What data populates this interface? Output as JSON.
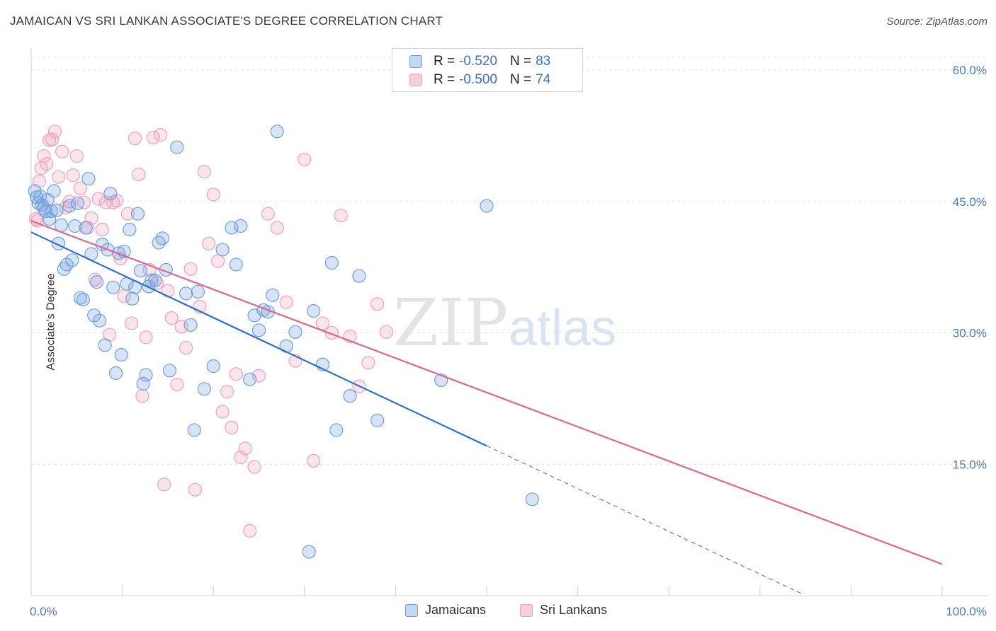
{
  "header": {
    "title": "JAMAICAN VS SRI LANKAN ASSOCIATE'S DEGREE CORRELATION CHART",
    "source": "Source: ZipAtlas.com"
  },
  "legend_top": {
    "rows": [
      {
        "r_label": "R =",
        "r_value": "-0.520",
        "n_label": "N =",
        "n_value": "83"
      },
      {
        "r_label": "R =",
        "r_value": "-0.500",
        "n_label": "N =",
        "n_value": "74"
      }
    ]
  },
  "watermark": {
    "zip": "ZIP",
    "atlas": "atlas"
  },
  "chart_data": {
    "type": "scatter",
    "xlabel": "",
    "ylabel": "Associate's Degree",
    "xlim": [
      0,
      100
    ],
    "ylim": [
      0,
      63
    ],
    "x_ticks": [
      {
        "value": 0,
        "label": "0.0%"
      },
      {
        "value": 100,
        "label": "100.0%"
      }
    ],
    "y_ticks": [
      {
        "value": 15,
        "label": "15.0%"
      },
      {
        "value": 30,
        "label": "30.0%"
      },
      {
        "value": 45,
        "label": "45.0%"
      },
      {
        "value": 60,
        "label": "60.0%"
      }
    ],
    "grid": true,
    "legend_position": "bottom",
    "colors": {
      "jamaicans": "#6f9fe0",
      "sri_lankans": "#f0a0bc",
      "jamaicans_line": "#2f6fcf",
      "sri_lankans_line": "#e06690"
    },
    "series": [
      {
        "name": "Jamaicans",
        "trend": {
          "x0": 0,
          "y0": 41.5,
          "x1": 50,
          "y1": 17.1,
          "dash_to_x": 84.6
        },
        "points": [
          [
            0.4,
            46.2
          ],
          [
            0.6,
            45.5
          ],
          [
            0.8,
            44.8
          ],
          [
            1,
            45.6
          ],
          [
            1.2,
            44.6
          ],
          [
            1.4,
            44.2
          ],
          [
            1.6,
            43.9
          ],
          [
            1.8,
            45.2
          ],
          [
            2,
            43.0
          ],
          [
            2.2,
            43.9
          ],
          [
            2.5,
            46.2
          ],
          [
            2.8,
            44.0
          ],
          [
            3,
            40.2
          ],
          [
            3.3,
            42.3
          ],
          [
            3.6,
            37.3
          ],
          [
            3.9,
            37.8
          ],
          [
            4.2,
            44.5
          ],
          [
            4.5,
            38.3
          ],
          [
            4.8,
            42.2
          ],
          [
            5.1,
            44.8
          ],
          [
            5.4,
            34.0
          ],
          [
            5.7,
            33.8
          ],
          [
            6,
            42.0
          ],
          [
            6.3,
            47.6
          ],
          [
            6.6,
            39.0
          ],
          [
            6.9,
            32.0
          ],
          [
            7.2,
            35.8
          ],
          [
            7.5,
            31.4
          ],
          [
            7.8,
            40.1
          ],
          [
            8.1,
            28.6
          ],
          [
            8.4,
            39.5
          ],
          [
            8.7,
            45.9
          ],
          [
            9,
            35.2
          ],
          [
            9.3,
            25.4
          ],
          [
            9.6,
            39.1
          ],
          [
            9.9,
            27.5
          ],
          [
            10.2,
            39.3
          ],
          [
            10.5,
            35.6
          ],
          [
            10.8,
            41.8
          ],
          [
            11.1,
            33.9
          ],
          [
            11.4,
            35.2
          ],
          [
            11.7,
            43.6
          ],
          [
            12,
            37.1
          ],
          [
            12.3,
            24.2
          ],
          [
            12.6,
            25.2
          ],
          [
            12.9,
            35.3
          ],
          [
            13.2,
            36.0
          ],
          [
            13.6,
            36.0
          ],
          [
            14,
            40.3
          ],
          [
            14.4,
            40.8
          ],
          [
            14.8,
            37.2
          ],
          [
            15.2,
            25.7
          ],
          [
            16,
            51.2
          ],
          [
            17,
            34.5
          ],
          [
            17.5,
            30.9
          ],
          [
            17.9,
            18.9
          ],
          [
            18.3,
            34.7
          ],
          [
            19,
            23.6
          ],
          [
            20,
            26.2
          ],
          [
            21,
            39.5
          ],
          [
            22,
            42.0
          ],
          [
            22.5,
            37.8
          ],
          [
            23,
            42.2
          ],
          [
            24,
            24.7
          ],
          [
            24.5,
            32.0
          ],
          [
            25,
            30.3
          ],
          [
            25.5,
            32.6
          ],
          [
            26,
            32.4
          ],
          [
            26.5,
            34.3
          ],
          [
            27,
            53.0
          ],
          [
            28,
            28.5
          ],
          [
            29,
            30.1
          ],
          [
            30.5,
            5.0
          ],
          [
            31,
            32.5
          ],
          [
            32,
            26.4
          ],
          [
            33,
            38.0
          ],
          [
            33.5,
            18.9
          ],
          [
            35,
            22.8
          ],
          [
            36,
            36.5
          ],
          [
            38,
            20.0
          ],
          [
            45,
            24.6
          ],
          [
            50,
            44.5
          ],
          [
            55,
            11.0
          ]
        ]
      },
      {
        "name": "Sri Lankans",
        "trend": {
          "x0": 0,
          "y0": 42.8,
          "x1": 100,
          "y1": 3.6
        },
        "points": [
          [
            0.5,
            43.0
          ],
          [
            0.7,
            42.8
          ],
          [
            0.9,
            47.3
          ],
          [
            1.1,
            48.8
          ],
          [
            1.4,
            50.2
          ],
          [
            1.7,
            49.3
          ],
          [
            2,
            52.0
          ],
          [
            2.3,
            52.1
          ],
          [
            2.6,
            53.0
          ],
          [
            3,
            47.8
          ],
          [
            3.4,
            50.7
          ],
          [
            3.8,
            44.3
          ],
          [
            4.2,
            45.0
          ],
          [
            4.6,
            48.0
          ],
          [
            5,
            50.2
          ],
          [
            5.4,
            46.5
          ],
          [
            5.8,
            44.9
          ],
          [
            6.2,
            42.0
          ],
          [
            6.6,
            43.1
          ],
          [
            7,
            36.1
          ],
          [
            7.4,
            45.3
          ],
          [
            7.8,
            41.8
          ],
          [
            8.2,
            44.9
          ],
          [
            8.6,
            29.8
          ],
          [
            9,
            44.9
          ],
          [
            9.4,
            45.1
          ],
          [
            9.8,
            38.5
          ],
          [
            10.2,
            34.2
          ],
          [
            10.6,
            43.6
          ],
          [
            11,
            31.1
          ],
          [
            11.4,
            52.2
          ],
          [
            11.8,
            48.1
          ],
          [
            12.2,
            22.8
          ],
          [
            12.6,
            29.5
          ],
          [
            13,
            37.2
          ],
          [
            13.4,
            52.3
          ],
          [
            13.8,
            35.7
          ],
          [
            14.2,
            52.6
          ],
          [
            14.6,
            12.7
          ],
          [
            15,
            34.8
          ],
          [
            15.4,
            31.7
          ],
          [
            16,
            24.1
          ],
          [
            16.5,
            30.7
          ],
          [
            17,
            28.3
          ],
          [
            17.5,
            37.3
          ],
          [
            18,
            12.1
          ],
          [
            18.5,
            33.0
          ],
          [
            19,
            48.4
          ],
          [
            19.5,
            40.2
          ],
          [
            20,
            45.8
          ],
          [
            20.5,
            38.2
          ],
          [
            21,
            21.0
          ],
          [
            21.5,
            23.3
          ],
          [
            22,
            19.2
          ],
          [
            22.5,
            25.3
          ],
          [
            23,
            15.8
          ],
          [
            23.5,
            16.8
          ],
          [
            24,
            7.4
          ],
          [
            24.5,
            14.7
          ],
          [
            25,
            25.1
          ],
          [
            26,
            43.6
          ],
          [
            27,
            42.0
          ],
          [
            28,
            33.5
          ],
          [
            29,
            26.8
          ],
          [
            30,
            49.8
          ],
          [
            31,
            15.4
          ],
          [
            32,
            31.1
          ],
          [
            33,
            30.0
          ],
          [
            34,
            43.4
          ],
          [
            35,
            29.6
          ],
          [
            36,
            23.9
          ],
          [
            37,
            26.6
          ],
          [
            38,
            33.3
          ],
          [
            39,
            30.1
          ]
        ]
      }
    ]
  },
  "legend_bottom": {
    "items": [
      {
        "label": "Jamaicans"
      },
      {
        "label": "Sri Lankans"
      }
    ]
  }
}
